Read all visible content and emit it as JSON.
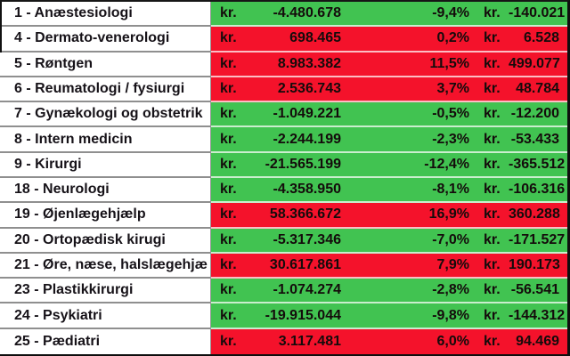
{
  "colors": {
    "green": "#41C351",
    "red": "#F4122B"
  },
  "table": {
    "currency_prefix": "kr.",
    "rows": [
      {
        "label": "1 - Anæstesiologi",
        "amount": "-4.480.678",
        "percent": "-9,4%",
        "amount2": "-140.021",
        "status": "green"
      },
      {
        "label": "4 - Dermato-venerologi",
        "amount": "698.465",
        "percent": "0,2%",
        "amount2": "6.528",
        "status": "red"
      },
      {
        "label": "5 - Røntgen",
        "amount": "8.983.382",
        "percent": "11,5%",
        "amount2": "499.077",
        "status": "red"
      },
      {
        "label": "6 - Reumatologi / fysiurgi",
        "amount": "2.536.743",
        "percent": "3,7%",
        "amount2": "48.784",
        "status": "red"
      },
      {
        "label": "7 - Gynækologi og obstetrik",
        "amount": "-1.049.221",
        "percent": "-0,5%",
        "amount2": "-12.200",
        "status": "green"
      },
      {
        "label": "8 - Intern medicin",
        "amount": "-2.244.199",
        "percent": "-2,3%",
        "amount2": "-53.433",
        "status": "green"
      },
      {
        "label": "9 - Kirurgi",
        "amount": "-21.565.199",
        "percent": "-12,4%",
        "amount2": "-365.512",
        "status": "green"
      },
      {
        "label": "18 - Neurologi",
        "amount": "-4.358.950",
        "percent": "-8,1%",
        "amount2": "-106.316",
        "status": "green"
      },
      {
        "label": "19 - Øjenlægehjælp",
        "amount": "58.366.672",
        "percent": "16,9%",
        "amount2": "360.288",
        "status": "red"
      },
      {
        "label": "20 - Ortopædisk kirugi",
        "amount": "-5.317.346",
        "percent": "-7,0%",
        "amount2": "-171.527",
        "status": "green"
      },
      {
        "label": "21 - Øre, næse, halslægehjæ",
        "amount": "30.617.861",
        "percent": "7,9%",
        "amount2": "190.173",
        "status": "red"
      },
      {
        "label": "23 - Plastikkirurgi",
        "amount": "-1.074.274",
        "percent": "-2,8%",
        "amount2": "-56.541",
        "status": "green"
      },
      {
        "label": "24 - Psykiatri",
        "amount": "-19.915.044",
        "percent": "-9,8%",
        "amount2": "-144.312",
        "status": "green"
      },
      {
        "label": "25 - Pædiatri",
        "amount": "3.117.481",
        "percent": "6,0%",
        "amount2": "94.469",
        "status": "red"
      }
    ]
  }
}
